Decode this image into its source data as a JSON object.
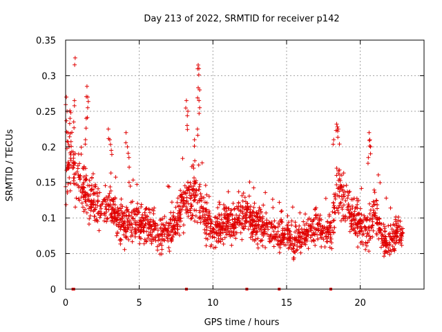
{
  "chart_data": {
    "type": "scatter",
    "title": "Day 213 of 2022, SRMTID for receiver p142",
    "xlabel": "GPS time / hours",
    "ylabel": "SRMTID / TECUs",
    "xlim": [
      0,
      24.33
    ],
    "ylim": [
      0,
      0.35
    ],
    "x_ticks": [
      0,
      5,
      10,
      15,
      20
    ],
    "y_ticks": [
      0,
      0.05,
      0.1,
      0.15,
      0.2,
      0.25,
      0.3,
      0.35
    ],
    "x_tick_labels": [
      "0",
      "5",
      "10",
      "15",
      "20"
    ],
    "y_tick_labels": [
      "0",
      "0.05",
      "0.1",
      "0.15",
      "0.2",
      "0.25",
      "0.3",
      "0.35"
    ],
    "grid": true,
    "marker": "+",
    "series": [
      {
        "name": "SRMTID p142",
        "color": "#e00000",
        "trend_hours": [
          0,
          0.3,
          0.6,
          1.0,
          1.5,
          2.0,
          2.5,
          3.0,
          3.5,
          4.0,
          4.5,
          5.0,
          5.5,
          6.0,
          6.5,
          7.0,
          7.5,
          8.0,
          8.5,
          9.0,
          9.5,
          10.0,
          10.5,
          11.0,
          11.5,
          12.0,
          12.5,
          13.0,
          13.5,
          14.0,
          14.5,
          15.0,
          15.5,
          16.0,
          16.5,
          17.0,
          17.5,
          18.0,
          18.5,
          19.0,
          19.5,
          20.0,
          20.5,
          21.0,
          21.5,
          22.0,
          22.5,
          22.9
        ],
        "trend_tecu": [
          0.17,
          0.19,
          0.16,
          0.15,
          0.13,
          0.12,
          0.11,
          0.115,
          0.1,
          0.09,
          0.1,
          0.09,
          0.095,
          0.085,
          0.075,
          0.085,
          0.09,
          0.12,
          0.13,
          0.13,
          0.1,
          0.08,
          0.085,
          0.095,
          0.09,
          0.1,
          0.1,
          0.09,
          0.085,
          0.08,
          0.075,
          0.08,
          0.065,
          0.07,
          0.08,
          0.09,
          0.08,
          0.085,
          0.14,
          0.12,
          0.1,
          0.09,
          0.08,
          0.11,
          0.07,
          0.065,
          0.08,
          0.08
        ],
        "spread_tecu": [
          0.05,
          0.05,
          0.04,
          0.035,
          0.03,
          0.03,
          0.025,
          0.03,
          0.025,
          0.03,
          0.03,
          0.025,
          0.025,
          0.025,
          0.025,
          0.025,
          0.025,
          0.03,
          0.035,
          0.035,
          0.03,
          0.025,
          0.025,
          0.025,
          0.025,
          0.025,
          0.025,
          0.025,
          0.025,
          0.025,
          0.025,
          0.02,
          0.02,
          0.02,
          0.02,
          0.025,
          0.02,
          0.025,
          0.035,
          0.03,
          0.025,
          0.025,
          0.025,
          0.03,
          0.02,
          0.02,
          0.02,
          0.02
        ],
        "peaks": [
          {
            "x": 0.05,
            "y": 0.27
          },
          {
            "x": 0.1,
            "y": 0.25
          },
          {
            "x": 0.15,
            "y": 0.22
          },
          {
            "x": 0.3,
            "y": 0.24
          },
          {
            "x": 0.65,
            "y": 0.325
          },
          {
            "x": 0.6,
            "y": 0.265
          },
          {
            "x": 0.55,
            "y": 0.235
          },
          {
            "x": 1.45,
            "y": 0.285
          },
          {
            "x": 1.5,
            "y": 0.27
          },
          {
            "x": 1.5,
            "y": 0.255
          },
          {
            "x": 1.4,
            "y": 0.24
          },
          {
            "x": 1.35,
            "y": 0.21
          },
          {
            "x": 2.9,
            "y": 0.225
          },
          {
            "x": 3.0,
            "y": 0.21
          },
          {
            "x": 3.1,
            "y": 0.195
          },
          {
            "x": 4.1,
            "y": 0.22
          },
          {
            "x": 4.2,
            "y": 0.2
          },
          {
            "x": 4.3,
            "y": 0.185
          },
          {
            "x": 8.2,
            "y": 0.265
          },
          {
            "x": 8.3,
            "y": 0.25
          },
          {
            "x": 8.25,
            "y": 0.23
          },
          {
            "x": 9.0,
            "y": 0.315
          },
          {
            "x": 9.05,
            "y": 0.31
          },
          {
            "x": 9.0,
            "y": 0.283
          },
          {
            "x": 9.1,
            "y": 0.28
          },
          {
            "x": 9.1,
            "y": 0.255
          },
          {
            "x": 8.95,
            "y": 0.225
          },
          {
            "x": 8.75,
            "y": 0.21
          },
          {
            "x": 18.4,
            "y": 0.232
          },
          {
            "x": 18.45,
            "y": 0.228
          },
          {
            "x": 18.5,
            "y": 0.225
          },
          {
            "x": 18.2,
            "y": 0.21
          },
          {
            "x": 20.6,
            "y": 0.22
          },
          {
            "x": 20.65,
            "y": 0.21
          },
          {
            "x": 20.7,
            "y": 0.2
          },
          {
            "x": 20.55,
            "y": 0.185
          }
        ],
        "zeros": [
          0.5,
          0.55,
          8.2,
          12.3,
          14.5,
          18.0
        ]
      }
    ]
  }
}
